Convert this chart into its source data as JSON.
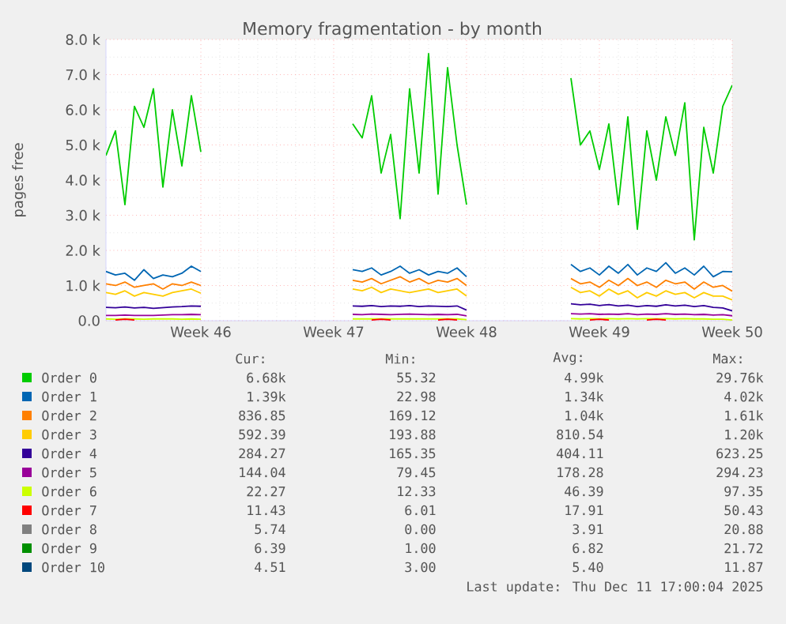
{
  "chart_data": {
    "type": "line",
    "title": "Memory fragmentation - by month",
    "ylabel": "pages free",
    "grid": true,
    "legend": "bottom",
    "ylim": [
      0,
      8000
    ],
    "categories": [
      null,
      null,
      null,
      null,
      null,
      null,
      null,
      null,
      null,
      null,
      "Week 46",
      null,
      null,
      null,
      null,
      null,
      null,
      null,
      null,
      null,
      null,
      null,
      null,
      null,
      "Week 47",
      null,
      null,
      null,
      null,
      null,
      null,
      null,
      null,
      null,
      null,
      null,
      null,
      null,
      "Week 48",
      null,
      null,
      null,
      null,
      null,
      null,
      null,
      null,
      null,
      null,
      null,
      null,
      null,
      "Week 49",
      null,
      null,
      null,
      null,
      null,
      null,
      null,
      null,
      null,
      null,
      null,
      null,
      null,
      "Week 50"
    ],
    "yticks": [
      {
        "value": 0,
        "label": "0.0"
      },
      {
        "value": 1000,
        "label": "1.0 k"
      },
      {
        "value": 2000,
        "label": "2.0 k"
      },
      {
        "value": 3000,
        "label": "3.0 k"
      },
      {
        "value": 4000,
        "label": "4.0 k"
      },
      {
        "value": 5000,
        "label": "5.0 k"
      },
      {
        "value": 6000,
        "label": "6.0 k"
      },
      {
        "value": 7000,
        "label": "7.0 k"
      },
      {
        "value": 8000,
        "label": "8.0 k"
      }
    ],
    "series": [
      {
        "name": "Order 0",
        "color": "#00cc00",
        "values": [
          4700,
          5400,
          3300,
          6100,
          5500,
          6600,
          3800,
          6000,
          4400,
          6400,
          4800,
          null,
          null,
          null,
          null,
          null,
          null,
          null,
          null,
          null,
          null,
          null,
          null,
          null,
          null,
          null,
          5600,
          5200,
          6400,
          4200,
          5300,
          2900,
          6600,
          4200,
          7600,
          3600,
          7200,
          5000,
          3300,
          null,
          null,
          null,
          null,
          null,
          null,
          null,
          null,
          null,
          null,
          6900,
          5000,
          5400,
          4300,
          5600,
          3300,
          5800,
          2600,
          5400,
          4000,
          5800,
          4700,
          6200,
          2300,
          5500,
          4200,
          6100,
          6700
        ]
      },
      {
        "name": "Order 1",
        "color": "#0066b3",
        "values": [
          1400,
          1300,
          1350,
          1150,
          1450,
          1200,
          1300,
          1250,
          1350,
          1550,
          1400,
          null,
          null,
          null,
          null,
          null,
          null,
          null,
          null,
          null,
          null,
          null,
          null,
          null,
          null,
          null,
          1450,
          1400,
          1500,
          1300,
          1400,
          1550,
          1350,
          1450,
          1300,
          1400,
          1350,
          1500,
          1250,
          null,
          null,
          null,
          null,
          null,
          null,
          null,
          null,
          null,
          null,
          1600,
          1400,
          1500,
          1300,
          1550,
          1350,
          1600,
          1300,
          1500,
          1400,
          1650,
          1350,
          1500,
          1300,
          1550,
          1250,
          1400,
          1390
        ]
      },
      {
        "name": "Order 2",
        "color": "#ff8000",
        "values": [
          1050,
          1000,
          1100,
          950,
          1000,
          1050,
          900,
          1050,
          1000,
          1100,
          1000,
          null,
          null,
          null,
          null,
          null,
          null,
          null,
          null,
          null,
          null,
          null,
          null,
          null,
          null,
          null,
          1150,
          1100,
          1200,
          1050,
          1150,
          1250,
          1100,
          1200,
          1050,
          1150,
          1100,
          1200,
          1000,
          null,
          null,
          null,
          null,
          null,
          null,
          null,
          null,
          null,
          null,
          1200,
          1050,
          1100,
          950,
          1150,
          1000,
          1200,
          1000,
          1100,
          950,
          1150,
          1050,
          1100,
          900,
          1100,
          950,
          1000,
          840
        ]
      },
      {
        "name": "Order 3",
        "color": "#ffcc00",
        "values": [
          800,
          750,
          850,
          700,
          800,
          750,
          700,
          800,
          850,
          900,
          780,
          null,
          null,
          null,
          null,
          null,
          null,
          null,
          null,
          null,
          null,
          null,
          null,
          null,
          null,
          null,
          900,
          850,
          950,
          800,
          900,
          850,
          800,
          850,
          900,
          800,
          850,
          900,
          700,
          null,
          null,
          null,
          null,
          null,
          null,
          null,
          null,
          null,
          null,
          950,
          800,
          850,
          700,
          900,
          750,
          850,
          650,
          800,
          700,
          850,
          750,
          800,
          650,
          800,
          700,
          700,
          590
        ]
      },
      {
        "name": "Order 4",
        "color": "#330099",
        "values": [
          380,
          370,
          390,
          360,
          380,
          350,
          370,
          390,
          400,
          420,
          410,
          null,
          null,
          null,
          null,
          null,
          null,
          null,
          null,
          null,
          null,
          null,
          null,
          null,
          null,
          null,
          420,
          410,
          430,
          400,
          420,
          410,
          430,
          400,
          420,
          410,
          400,
          420,
          300,
          null,
          null,
          null,
          null,
          null,
          null,
          null,
          null,
          null,
          null,
          480,
          450,
          470,
          430,
          460,
          420,
          440,
          400,
          430,
          410,
          450,
          420,
          440,
          400,
          430,
          380,
          360,
          280
        ]
      },
      {
        "name": "Order 5",
        "color": "#990099",
        "values": [
          150,
          150,
          160,
          150,
          150,
          150,
          160,
          170,
          170,
          180,
          170,
          null,
          null,
          null,
          null,
          null,
          null,
          null,
          null,
          null,
          null,
          null,
          null,
          null,
          null,
          null,
          180,
          170,
          190,
          180,
          170,
          180,
          190,
          180,
          170,
          180,
          170,
          180,
          140,
          null,
          null,
          null,
          null,
          null,
          null,
          null,
          null,
          null,
          null,
          200,
          190,
          200,
          180,
          190,
          180,
          200,
          170,
          190,
          180,
          200,
          180,
          190,
          170,
          180,
          160,
          170,
          140
        ]
      },
      {
        "name": "Order 6",
        "color": "#ccff00",
        "values": [
          50,
          40,
          50,
          50,
          40,
          50,
          50,
          50,
          40,
          50,
          40,
          null,
          null,
          null,
          null,
          null,
          null,
          null,
          null,
          null,
          null,
          null,
          null,
          null,
          null,
          null,
          50,
          50,
          50,
          50,
          50,
          50,
          50,
          50,
          50,
          50,
          50,
          50,
          30,
          null,
          null,
          null,
          null,
          null,
          null,
          null,
          null,
          null,
          null,
          60,
          50,
          60,
          50,
          60,
          50,
          60,
          50,
          60,
          50,
          60,
          50,
          60,
          50,
          50,
          40,
          40,
          20
        ]
      },
      {
        "name": "Order 7",
        "color": "#ff0000",
        "values": [
          null,
          20,
          40,
          20,
          null,
          null,
          null,
          null,
          null,
          null,
          null,
          null,
          null,
          null,
          null,
          null,
          null,
          null,
          null,
          null,
          null,
          null,
          null,
          null,
          null,
          null,
          null,
          null,
          20,
          40,
          20,
          null,
          null,
          null,
          null,
          20,
          40,
          20,
          null,
          null,
          null,
          null,
          null,
          null,
          null,
          null,
          null,
          null,
          null,
          null,
          null,
          20,
          40,
          20,
          null,
          null,
          null,
          20,
          40,
          20,
          null,
          null,
          null,
          null,
          null,
          null,
          null
        ]
      },
      {
        "name": "Order 8",
        "color": "#808080",
        "values": [
          null,
          null,
          null,
          null,
          null,
          null,
          null,
          null,
          null,
          null,
          null,
          null,
          null,
          null,
          null,
          null,
          null,
          null,
          null,
          null,
          null,
          null,
          null,
          null,
          null,
          null,
          null,
          null,
          null,
          null,
          null,
          null,
          null,
          null,
          null,
          null,
          null,
          null,
          null,
          null,
          null,
          null,
          null,
          null,
          null,
          null,
          null,
          null,
          null,
          null,
          null,
          null,
          null,
          null,
          null,
          null,
          null,
          null,
          null,
          null,
          null,
          null,
          null,
          null,
          null,
          null,
          null
        ]
      },
      {
        "name": "Order 9",
        "color": "#008f00",
        "values": [
          null,
          null,
          null,
          null,
          null,
          null,
          null,
          null,
          null,
          null,
          null,
          null,
          null,
          null,
          null,
          null,
          null,
          null,
          null,
          null,
          null,
          null,
          null,
          null,
          null,
          null,
          null,
          null,
          null,
          null,
          null,
          null,
          null,
          null,
          null,
          null,
          null,
          null,
          null,
          null,
          null,
          null,
          null,
          null,
          null,
          null,
          null,
          null,
          null,
          null,
          null,
          null,
          null,
          null,
          null,
          null,
          null,
          null,
          null,
          null,
          null,
          null,
          null,
          null,
          null,
          null,
          null
        ]
      },
      {
        "name": "Order 10",
        "color": "#00487d",
        "values": [
          null,
          null,
          null,
          null,
          null,
          null,
          null,
          null,
          null,
          null,
          null,
          null,
          null,
          null,
          null,
          null,
          null,
          null,
          null,
          null,
          null,
          null,
          null,
          null,
          null,
          null,
          null,
          null,
          null,
          null,
          null,
          null,
          null,
          null,
          null,
          null,
          null,
          null,
          null,
          null,
          null,
          null,
          null,
          null,
          null,
          null,
          null,
          null,
          null,
          null,
          null,
          null,
          null,
          null,
          null,
          null,
          null,
          null,
          null,
          null,
          null,
          null,
          null,
          null,
          null,
          null,
          null
        ]
      }
    ],
    "annotations": [
      "Cur:",
      "Min:",
      "Avg:",
      "Max:",
      "6.68k",
      "55.32",
      "4.99k",
      "29.76k",
      "1.39k",
      "22.98",
      "1.34k",
      "4.02k",
      "836.85",
      "169.12",
      "1.04k",
      "1.61k",
      "592.39",
      "193.88",
      "810.54",
      "1.20k",
      "284.27",
      "165.35",
      "404.11",
      "623.25",
      "144.04",
      "79.45",
      "178.28",
      "294.23",
      "22.27",
      "12.33",
      "46.39",
      "97.35",
      "11.43",
      "6.01",
      "17.91",
      "50.43",
      "5.74",
      "0.00",
      "3.91",
      "20.88",
      "6.39",
      "1.00",
      "6.82",
      "21.72",
      "4.51",
      "3.00",
      "5.40",
      "11.87",
      "Last update: Thu Dec 11 17:00:04 2025"
    ]
  }
}
